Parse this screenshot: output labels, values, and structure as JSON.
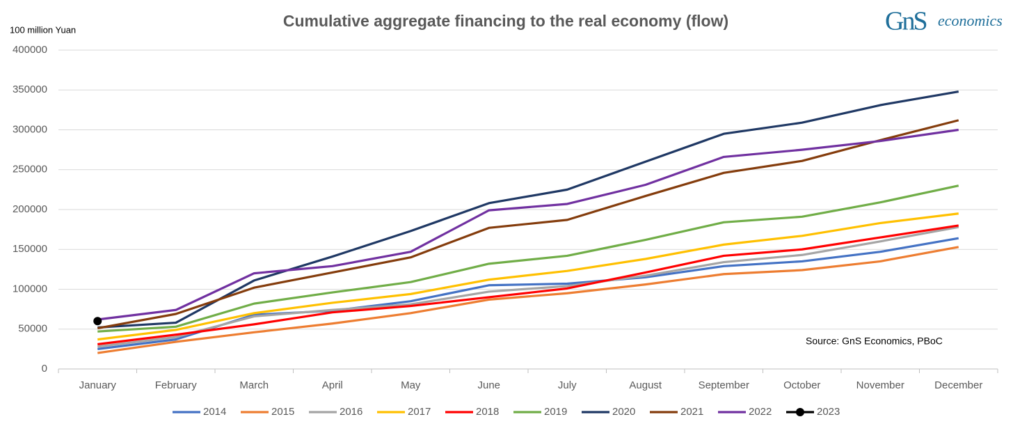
{
  "chart_data": {
    "type": "line",
    "title": "Cumulative aggregate financing to the real economy (flow)",
    "y_axis_label": "100 million Yuan",
    "annotation": "Source: GnS Economics, PBoC",
    "logo": {
      "mark": "GnS",
      "text": "economics"
    },
    "categories": [
      "January",
      "February",
      "March",
      "April",
      "May",
      "June",
      "July",
      "August",
      "September",
      "October",
      "November",
      "December"
    ],
    "ylim": [
      0,
      400000
    ],
    "yticks": [
      0,
      50000,
      100000,
      150000,
      200000,
      250000,
      300000,
      350000,
      400000
    ],
    "grid": true,
    "legend": "bottom",
    "series": [
      {
        "name": "2014",
        "color": "#4472c4",
        "values": [
          25000,
          37000,
          68000,
          73000,
          85000,
          105000,
          107000,
          115000,
          129000,
          135000,
          147000,
          164000
        ]
      },
      {
        "name": "2015",
        "color": "#ed7d31",
        "values": [
          20000,
          34000,
          46000,
          57000,
          70000,
          87000,
          95000,
          106000,
          119000,
          124000,
          135000,
          153000
        ]
      },
      {
        "name": "2016",
        "color": "#a5a5a5",
        "values": [
          28000,
          40000,
          66000,
          74000,
          81000,
          97000,
          104000,
          117000,
          134000,
          143000,
          160000,
          178000
        ]
      },
      {
        "name": "2017",
        "color": "#ffc000",
        "values": [
          37000,
          49000,
          70000,
          83000,
          94000,
          112000,
          123000,
          138000,
          156000,
          167000,
          183000,
          195000
        ]
      },
      {
        "name": "2018",
        "color": "#ff0000",
        "values": [
          31000,
          43000,
          56000,
          71000,
          79000,
          90000,
          101000,
          121000,
          142000,
          150000,
          165000,
          180000
        ]
      },
      {
        "name": "2019",
        "color": "#70ad47",
        "values": [
          47000,
          53000,
          82000,
          96000,
          109000,
          132000,
          142000,
          162000,
          184000,
          191000,
          209000,
          230000
        ]
      },
      {
        "name": "2020",
        "color": "#1f3864",
        "values": [
          52000,
          58000,
          111000,
          141000,
          173000,
          208000,
          225000,
          260000,
          295000,
          309000,
          331000,
          348000
        ]
      },
      {
        "name": "2021",
        "color": "#843c0c",
        "values": [
          51000,
          69000,
          102000,
          121000,
          140000,
          177000,
          187000,
          217000,
          246000,
          261000,
          287000,
          312000
        ]
      },
      {
        "name": "2022",
        "color": "#7030a0",
        "values": [
          62000,
          74000,
          120000,
          129000,
          147000,
          199000,
          207000,
          231000,
          266000,
          275000,
          286000,
          300000
        ]
      },
      {
        "name": "2023",
        "color": "#000000",
        "marker": true,
        "values": [
          60000,
          null,
          null,
          null,
          null,
          null,
          null,
          null,
          null,
          null,
          null,
          null
        ]
      }
    ]
  }
}
